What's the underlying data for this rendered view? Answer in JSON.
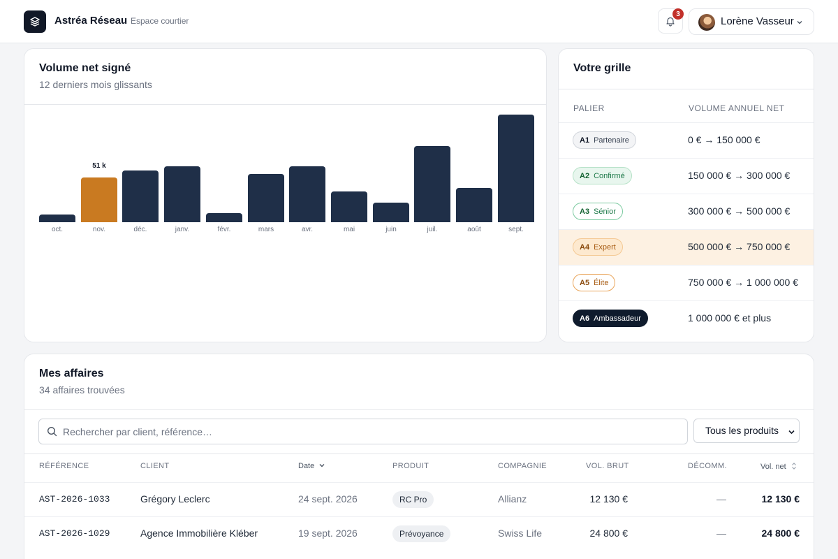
{
  "header": {
    "brand": "Astréa Réseau",
    "subtitle": "Espace courtier",
    "notifications_count": "3",
    "user_name": "Lorène Vasseur"
  },
  "volume": {
    "title": "Volume net signé",
    "subtitle": "12 derniers mois glissants"
  },
  "chart_data": {
    "type": "bar",
    "title": "Volume net signé",
    "subtitle": "12 derniers mois glissants",
    "categories": [
      "oct.",
      "nov.",
      "déc.",
      "janv.",
      "févr.",
      "mars",
      "avr.",
      "mai",
      "juin",
      "juil.",
      "août",
      "sept."
    ],
    "values": [
      9,
      51,
      59,
      63,
      10,
      55,
      63,
      35,
      22,
      86,
      39,
      122
    ],
    "highlight_index": 1,
    "highlight_label": "51 k",
    "unit": "k€",
    "ylim": [
      0,
      122
    ],
    "grid": false,
    "colors": {
      "bar": "#1f2f48",
      "highlight": "#c97a21"
    }
  },
  "grille": {
    "title": "Votre grille",
    "col_palier": "PALIER",
    "col_volume": "VOLUME ANNUEL NET",
    "tiers": [
      {
        "code": "A1",
        "name": "Partenaire",
        "range": "0 € → 150 000 €",
        "style": "neutral"
      },
      {
        "code": "A2",
        "name": "Confirmé",
        "range": "150 000 € → 300 000 €",
        "style": "green"
      },
      {
        "code": "A3",
        "name": "Sénior",
        "range": "300 000 € → 500 000 €",
        "style": "green-outline"
      },
      {
        "code": "A4",
        "name": "Expert",
        "range": "500 000 € → 750 000 €",
        "style": "orange",
        "active": true
      },
      {
        "code": "A5",
        "name": "Élite",
        "range": "750 000 € → 1 000 000 €",
        "style": "orange-outline"
      },
      {
        "code": "A6",
        "name": "Ambassadeur",
        "range": "1 000 000 € et plus",
        "style": "dark"
      }
    ]
  },
  "affaires": {
    "title": "Mes affaires",
    "subtitle": "34 affaires trouvées",
    "search_placeholder": "Rechercher par client, référence…",
    "product_filter": "Tous les produits",
    "columns": {
      "reference": "RÉFÉRENCE",
      "client": "CLIENT",
      "date": "Date",
      "produit": "PRODUIT",
      "compagnie": "COMPAGNIE",
      "vol_brut": "VOL. BRUT",
      "decomm": "DÉCOMM.",
      "vol_net": "Vol. net"
    },
    "rows": [
      {
        "reference": "AST-2026-1033",
        "client": "Grégory Leclerc",
        "date": "24 sept. 2026",
        "produit": "RC Pro",
        "compagnie": "Allianz",
        "vol_brut": "12 130 €",
        "decomm": "—",
        "vol_net": "12 130 €"
      },
      {
        "reference": "AST-2026-1029",
        "client": "Agence Immobilière Kléber",
        "date": "19 sept. 2026",
        "produit": "Prévoyance",
        "compagnie": "Swiss Life",
        "vol_brut": "24 800 €",
        "decomm": "—",
        "vol_net": "24 800 €"
      }
    ]
  }
}
